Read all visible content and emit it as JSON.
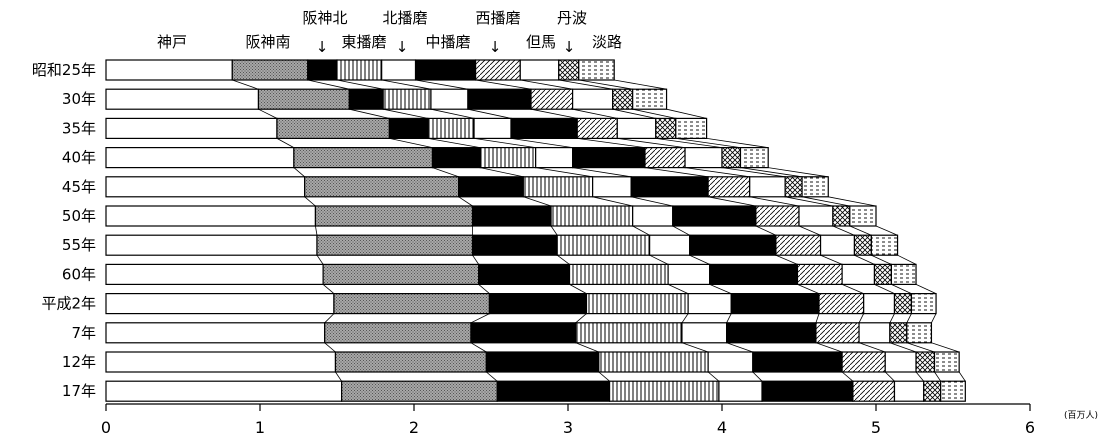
{
  "chart_data": {
    "type": "bar",
    "stacked": true,
    "orientation": "horizontal",
    "unit_label": "(百万人)",
    "xlim": [
      0,
      6
    ],
    "xticks": [
      0,
      1,
      2,
      3,
      4,
      5,
      6
    ],
    "categories": [
      "昭和25年",
      "30年",
      "35年",
      "40年",
      "45年",
      "50年",
      "55年",
      "60年",
      "平成2年",
      "7年",
      "12年",
      "17年"
    ],
    "series": [
      {
        "name": "神戸",
        "pattern": "white",
        "values": [
          0.82,
          0.99,
          1.11,
          1.22,
          1.29,
          1.36,
          1.37,
          1.41,
          1.48,
          1.42,
          1.49,
          1.53
        ]
      },
      {
        "name": "阪神南",
        "pattern": "gray",
        "values": [
          0.49,
          0.59,
          0.73,
          0.9,
          1.0,
          1.02,
          1.01,
          1.01,
          1.01,
          0.95,
          0.98,
          1.01
        ]
      },
      {
        "name": "阪神北",
        "pattern": "black",
        "values": [
          0.19,
          0.22,
          0.25,
          0.31,
          0.42,
          0.51,
          0.55,
          0.59,
          0.63,
          0.68,
          0.73,
          0.73
        ]
      },
      {
        "name": "東播磨",
        "pattern": "vline",
        "values": [
          0.29,
          0.31,
          0.3,
          0.36,
          0.45,
          0.53,
          0.6,
          0.64,
          0.66,
          0.69,
          0.71,
          0.71
        ]
      },
      {
        "name": "北播磨",
        "pattern": "white",
        "values": [
          0.22,
          0.24,
          0.24,
          0.24,
          0.25,
          0.26,
          0.26,
          0.27,
          0.28,
          0.29,
          0.29,
          0.28
        ]
      },
      {
        "name": "中播磨",
        "pattern": "black",
        "values": [
          0.39,
          0.41,
          0.43,
          0.47,
          0.5,
          0.54,
          0.56,
          0.57,
          0.57,
          0.58,
          0.58,
          0.59
        ]
      },
      {
        "name": "西播磨",
        "pattern": "diag",
        "values": [
          0.29,
          0.27,
          0.26,
          0.26,
          0.27,
          0.28,
          0.29,
          0.29,
          0.29,
          0.28,
          0.28,
          0.27
        ]
      },
      {
        "name": "但馬",
        "pattern": "white",
        "values": [
          0.25,
          0.26,
          0.25,
          0.24,
          0.23,
          0.22,
          0.22,
          0.21,
          0.2,
          0.2,
          0.2,
          0.19
        ]
      },
      {
        "name": "丹波",
        "pattern": "cross",
        "values": [
          0.13,
          0.13,
          0.13,
          0.12,
          0.11,
          0.11,
          0.11,
          0.11,
          0.11,
          0.11,
          0.12,
          0.11
        ]
      },
      {
        "name": "淡路",
        "pattern": "dash",
        "values": [
          0.23,
          0.22,
          0.2,
          0.18,
          0.17,
          0.17,
          0.17,
          0.16,
          0.16,
          0.16,
          0.16,
          0.16
        ]
      }
    ],
    "legend": {
      "placement": "top",
      "arrow_glyph": "↓"
    },
    "colors": {
      "black": "#000000",
      "white": "#ffffff",
      "gray": "#8c8c8c"
    }
  }
}
